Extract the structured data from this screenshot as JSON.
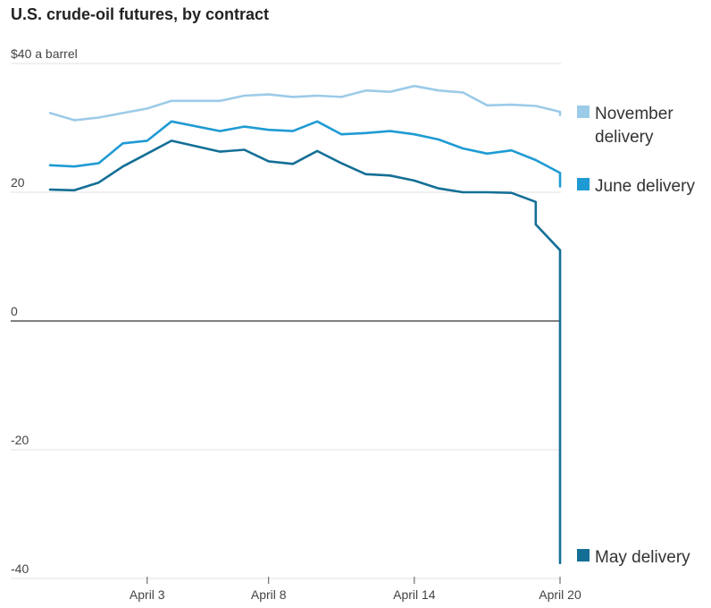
{
  "title": "U.S. crude-oil futures, by contract",
  "chart_data": {
    "type": "line",
    "title": "U.S. crude-oil futures, by contract",
    "y_unit_label": "$40 a barrel",
    "ylim": [
      -40,
      40
    ],
    "y_ticks": [
      {
        "value": 40,
        "label": "$40 a barrel"
      },
      {
        "value": 20,
        "label": "20"
      },
      {
        "value": 0,
        "label": "0"
      },
      {
        "value": -20,
        "label": "-20"
      },
      {
        "value": -40,
        "label": "-40"
      }
    ],
    "xlim": [
      "2020-03-30",
      "2020-04-20"
    ],
    "x_ticks": [
      {
        "date": "2020-04-03",
        "label": "April 3"
      },
      {
        "date": "2020-04-08",
        "label": "April 8"
      },
      {
        "date": "2020-04-14",
        "label": "April 14"
      },
      {
        "date": "2020-04-20",
        "label": "April 20"
      }
    ],
    "grid": true,
    "legend_placement": "right",
    "series": [
      {
        "name": "November delivery",
        "label_lines": [
          "November",
          "delivery"
        ],
        "color": "#9ccbe8",
        "points": [
          [
            "2020-03-30",
            32.3
          ],
          [
            "2020-03-31",
            31.2
          ],
          [
            "2020-04-01",
            31.6
          ],
          [
            "2020-04-02",
            32.3
          ],
          [
            "2020-04-03",
            33.0
          ],
          [
            "2020-04-04",
            34.2
          ],
          [
            "2020-04-06",
            34.2
          ],
          [
            "2020-04-07",
            35.0
          ],
          [
            "2020-04-08",
            35.2
          ],
          [
            "2020-04-09",
            34.8
          ],
          [
            "2020-04-10",
            35.0
          ],
          [
            "2020-04-11",
            34.8
          ],
          [
            "2020-04-12",
            35.8
          ],
          [
            "2020-04-13",
            35.6
          ],
          [
            "2020-04-14",
            36.5
          ],
          [
            "2020-04-15",
            35.8
          ],
          [
            "2020-04-16",
            35.5
          ],
          [
            "2020-04-17",
            33.5
          ],
          [
            "2020-04-18",
            33.6
          ],
          [
            "2020-04-19",
            33.4
          ],
          [
            "2020-04-20",
            32.5
          ],
          [
            "2020-04-20",
            32.0
          ]
        ]
      },
      {
        "name": "June delivery",
        "label_lines": [
          "June delivery"
        ],
        "color": "#1f9bd3",
        "points": [
          [
            "2020-03-30",
            24.2
          ],
          [
            "2020-03-31",
            24.0
          ],
          [
            "2020-04-01",
            24.5
          ],
          [
            "2020-04-02",
            27.6
          ],
          [
            "2020-04-03",
            28.0
          ],
          [
            "2020-04-04",
            31.0
          ],
          [
            "2020-04-06",
            29.5
          ],
          [
            "2020-04-07",
            30.2
          ],
          [
            "2020-04-08",
            29.7
          ],
          [
            "2020-04-09",
            29.5
          ],
          [
            "2020-04-10",
            31.0
          ],
          [
            "2020-04-11",
            29.0
          ],
          [
            "2020-04-12",
            29.2
          ],
          [
            "2020-04-13",
            29.5
          ],
          [
            "2020-04-14",
            29.0
          ],
          [
            "2020-04-15",
            28.2
          ],
          [
            "2020-04-16",
            26.8
          ],
          [
            "2020-04-17",
            26.0
          ],
          [
            "2020-04-18",
            26.5
          ],
          [
            "2020-04-19",
            25.0
          ],
          [
            "2020-04-20",
            23.0
          ],
          [
            "2020-04-20",
            20.9
          ]
        ]
      },
      {
        "name": "May delivery",
        "label_lines": [
          "May delivery"
        ],
        "color": "#146f96",
        "points": [
          [
            "2020-03-30",
            20.4
          ],
          [
            "2020-03-31",
            20.3
          ],
          [
            "2020-04-01",
            21.5
          ],
          [
            "2020-04-02",
            24.0
          ],
          [
            "2020-04-03",
            26.0
          ],
          [
            "2020-04-04",
            28.0
          ],
          [
            "2020-04-06",
            26.3
          ],
          [
            "2020-04-07",
            26.6
          ],
          [
            "2020-04-08",
            24.8
          ],
          [
            "2020-04-09",
            24.4
          ],
          [
            "2020-04-10",
            26.4
          ],
          [
            "2020-04-11",
            24.5
          ],
          [
            "2020-04-12",
            22.8
          ],
          [
            "2020-04-13",
            22.6
          ],
          [
            "2020-04-14",
            21.8
          ],
          [
            "2020-04-15",
            20.6
          ],
          [
            "2020-04-16",
            20.0
          ],
          [
            "2020-04-17",
            20.0
          ],
          [
            "2020-04-18",
            19.9
          ],
          [
            "2020-04-19",
            18.5
          ],
          [
            "2020-04-19",
            15.0
          ],
          [
            "2020-04-20",
            11.0
          ],
          [
            "2020-04-20",
            10.0
          ],
          [
            "2020-04-20",
            0.0
          ],
          [
            "2020-04-20",
            -37.6
          ]
        ]
      }
    ]
  }
}
